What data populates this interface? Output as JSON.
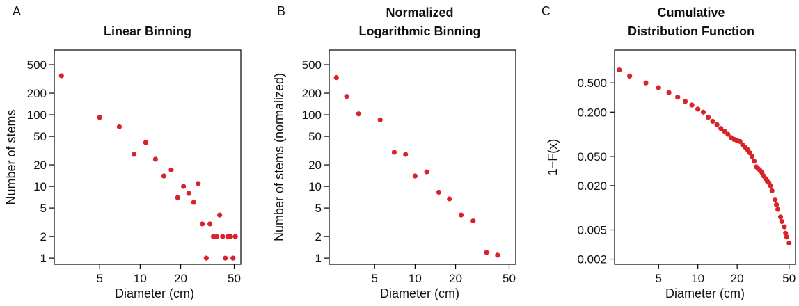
{
  "chart_data": [
    {
      "type": "scatter",
      "panel_label": "A",
      "title": [
        "Linear Binning"
      ],
      "xlabel": "Diameter (cm)",
      "ylabel": "Number of stems",
      "xscale": "log",
      "yscale": "log",
      "xlim": [
        2.3,
        56
      ],
      "ylim": [
        0.82,
        800
      ],
      "xticks": [
        5,
        10,
        20,
        50
      ],
      "yticks": [
        1,
        2,
        5,
        10,
        20,
        50,
        100,
        200,
        500
      ],
      "point_color": "#d8232a",
      "points": [
        [
          2.6,
          350
        ],
        [
          5,
          92
        ],
        [
          7,
          68
        ],
        [
          9,
          28
        ],
        [
          11,
          41
        ],
        [
          13,
          24
        ],
        [
          15,
          14
        ],
        [
          17,
          17
        ],
        [
          19,
          7
        ],
        [
          21,
          10
        ],
        [
          23,
          8
        ],
        [
          25,
          6
        ],
        [
          27,
          11
        ],
        [
          29,
          3
        ],
        [
          31,
          1
        ],
        [
          33,
          3
        ],
        [
          35,
          2
        ],
        [
          37,
          2
        ],
        [
          39,
          4
        ],
        [
          41,
          2
        ],
        [
          43,
          1
        ],
        [
          45,
          2
        ],
        [
          47,
          2
        ],
        [
          49,
          1
        ],
        [
          51,
          2
        ]
      ]
    },
    {
      "type": "scatter",
      "panel_label": "B",
      "title": [
        "Normalized",
        "Logarithmic Binning"
      ],
      "xlabel": "Diameter (cm)",
      "ylabel": "Number of stems (normalized)",
      "xscale": "log",
      "yscale": "log",
      "xlim": [
        2.3,
        56
      ],
      "ylim": [
        0.82,
        800
      ],
      "xticks": [
        5,
        10,
        20,
        50
      ],
      "yticks": [
        1,
        2,
        5,
        10,
        20,
        50,
        100,
        200,
        500
      ],
      "point_color": "#d8232a",
      "points": [
        [
          2.6,
          330
        ],
        [
          3.1,
          180
        ],
        [
          3.8,
          103
        ],
        [
          5.5,
          85
        ],
        [
          7,
          30
        ],
        [
          8.5,
          28
        ],
        [
          10,
          14
        ],
        [
          12.2,
          16
        ],
        [
          15,
          8.3
        ],
        [
          18,
          6.7
        ],
        [
          22,
          4
        ],
        [
          27,
          3.3
        ],
        [
          34,
          1.2
        ],
        [
          41,
          1.1
        ]
      ]
    },
    {
      "type": "scatter",
      "panel_label": "C",
      "title": [
        "Cumulative",
        "Distribution Function"
      ],
      "xlabel": "Diameter (cm)",
      "ylabel": "1−F(x)",
      "xscale": "log",
      "yscale": "log",
      "xlim": [
        2.3,
        56
      ],
      "ylim": [
        0.0017,
        1.4
      ],
      "xticks": [
        5,
        10,
        20,
        50
      ],
      "yticks": [
        0.002,
        0.005,
        0.02,
        0.05,
        0.2,
        0.5
      ],
      "yticklabels": [
        "0.002",
        "0.005",
        "0.020",
        "0.050",
        "0.200",
        "0.500"
      ],
      "point_color": "#d8232a",
      "points": [
        [
          2.5,
          0.75
        ],
        [
          3,
          0.62
        ],
        [
          4,
          0.5
        ],
        [
          5,
          0.43
        ],
        [
          6,
          0.37
        ],
        [
          7,
          0.32
        ],
        [
          8,
          0.28
        ],
        [
          9,
          0.25
        ],
        [
          10,
          0.22
        ],
        [
          11,
          0.2
        ],
        [
          12,
          0.17
        ],
        [
          13,
          0.15
        ],
        [
          14,
          0.135
        ],
        [
          15,
          0.12
        ],
        [
          16,
          0.11
        ],
        [
          17,
          0.1
        ],
        [
          18,
          0.09
        ],
        [
          19,
          0.085
        ],
        [
          20,
          0.082
        ],
        [
          21,
          0.08
        ],
        [
          22,
          0.072
        ],
        [
          23,
          0.067
        ],
        [
          24,
          0.062
        ],
        [
          25,
          0.056
        ],
        [
          26,
          0.05
        ],
        [
          27,
          0.043
        ],
        [
          28,
          0.036
        ],
        [
          29,
          0.034
        ],
        [
          30,
          0.032
        ],
        [
          31,
          0.03
        ],
        [
          32,
          0.027
        ],
        [
          33,
          0.025
        ],
        [
          34,
          0.023
        ],
        [
          35,
          0.022
        ],
        [
          36,
          0.02
        ],
        [
          37,
          0.017
        ],
        [
          39,
          0.013
        ],
        [
          40,
          0.011
        ],
        [
          41,
          0.0095
        ],
        [
          43,
          0.0075
        ],
        [
          44,
          0.0065
        ],
        [
          46,
          0.0055
        ],
        [
          47,
          0.0045
        ],
        [
          48,
          0.004
        ],
        [
          50,
          0.0033
        ]
      ]
    }
  ]
}
